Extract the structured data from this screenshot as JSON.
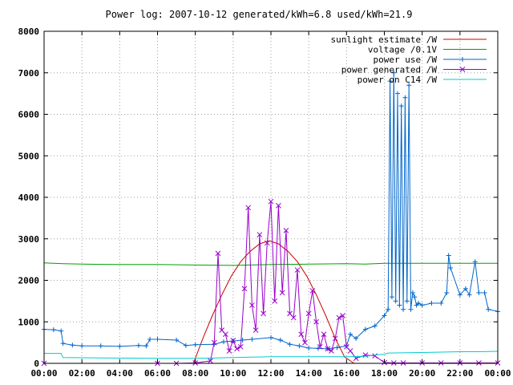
{
  "chart_data": {
    "type": "line",
    "title": "Power log: 2007-10-12 generated/kWh=6.8 used/kWh=21.9",
    "xlabel": "",
    "ylabel": "",
    "xlim": [
      0,
      24
    ],
    "ylim": [
      0,
      8000
    ],
    "grid": true,
    "legend_position": "top-right",
    "x_tick_labels": [
      "00:00",
      "02:00",
      "04:00",
      "06:00",
      "08:00",
      "10:00",
      "12:00",
      "14:00",
      "16:00",
      "18:00",
      "20:00",
      "22:00",
      "00:00"
    ],
    "y_tick_labels": [
      "0",
      "1000",
      "2000",
      "3000",
      "4000",
      "5000",
      "6000",
      "7000",
      "8000"
    ],
    "series": [
      {
        "name": "sunlight estimate /W",
        "color": "#cc0000",
        "marker": "none",
        "x": [
          7.9,
          8.4,
          8.9,
          9.4,
          9.9,
          10.4,
          10.9,
          11.4,
          11.9,
          12.4,
          12.9,
          13.4,
          13.9,
          14.4,
          14.9,
          15.4,
          15.9,
          16.4
        ],
        "y": [
          0,
          600,
          1150,
          1650,
          2100,
          2450,
          2700,
          2880,
          2950,
          2880,
          2700,
          2450,
          2100,
          1650,
          1150,
          600,
          150,
          0
        ]
      },
      {
        "name": "voltage /0.1V",
        "color": "#00a000",
        "marker": "none",
        "x": [
          0,
          1,
          2,
          4,
          6,
          8,
          10,
          12,
          14,
          16,
          17,
          18,
          20,
          22,
          24
        ],
        "y": [
          2420,
          2400,
          2390,
          2380,
          2380,
          2370,
          2360,
          2380,
          2390,
          2400,
          2390,
          2410,
          2410,
          2410,
          2410
        ]
      },
      {
        "name": "power use /W",
        "color": "#0066cc",
        "marker": "plus",
        "x": [
          0,
          0.5,
          0.9,
          1,
          1.5,
          2,
          3,
          4,
          5,
          5.4,
          5.6,
          6,
          7,
          7.5,
          8,
          9,
          9.5,
          10,
          10.5,
          11,
          12,
          12.5,
          13,
          13.5,
          14,
          14.5,
          15,
          15.5,
          16,
          16.2,
          16.5,
          17,
          17.5,
          18,
          18.2,
          18.3,
          18.4,
          18.5,
          18.6,
          18.7,
          18.8,
          18.9,
          19,
          19.1,
          19.2,
          19.3,
          19.4,
          19.5,
          19.6,
          19.7,
          19.8,
          20,
          20.5,
          21,
          21.3,
          21.4,
          21.5,
          22,
          22.3,
          22.5,
          22.8,
          23,
          23.3,
          23.5,
          24
        ],
        "y": [
          820,
          810,
          780,
          480,
          440,
          420,
          420,
          410,
          430,
          420,
          580,
          580,
          560,
          430,
          450,
          460,
          520,
          540,
          560,
          580,
          620,
          560,
          460,
          420,
          370,
          360,
          350,
          380,
          420,
          700,
          600,
          820,
          900,
          1150,
          1300,
          6800,
          1600,
          7000,
          1500,
          6500,
          1400,
          6200,
          1300,
          6400,
          1500,
          6700,
          1300,
          1700,
          1600,
          1400,
          1450,
          1400,
          1450,
          1450,
          1700,
          2600,
          2300,
          1650,
          1800,
          1650,
          2450,
          1700,
          1700,
          1300,
          1250
        ]
      },
      {
        "name": "power generated /W",
        "color": "#9900cc",
        "marker": "cross",
        "x": [
          0,
          6,
          7,
          8,
          8.8,
          9,
          9.2,
          9.4,
          9.6,
          9.8,
          10,
          10.2,
          10.4,
          10.6,
          10.8,
          11,
          11.2,
          11.4,
          11.6,
          11.8,
          12,
          12.2,
          12.4,
          12.6,
          12.8,
          13,
          13.2,
          13.4,
          13.6,
          13.8,
          14,
          14.2,
          14.4,
          14.6,
          14.8,
          15,
          15.2,
          15.4,
          15.6,
          15.8,
          16,
          16.2,
          16.5,
          17,
          17.5,
          18,
          18.5,
          19,
          20,
          21,
          22,
          23,
          24
        ],
        "y": [
          0,
          0,
          0,
          10,
          60,
          500,
          2650,
          800,
          700,
          300,
          550,
          350,
          400,
          1800,
          3750,
          1400,
          800,
          3100,
          1200,
          2900,
          3900,
          1500,
          3800,
          1700,
          3200,
          1200,
          1100,
          2250,
          700,
          500,
          1200,
          1750,
          1000,
          400,
          700,
          350,
          300,
          600,
          1100,
          1150,
          400,
          300,
          120,
          200,
          180,
          20,
          10,
          10,
          10,
          10,
          10,
          10,
          10
        ]
      },
      {
        "name": "power on C14 /W",
        "color": "#00cccc",
        "marker": "none",
        "x": [
          0,
          0.9,
          1,
          3,
          6,
          8,
          10,
          12,
          14,
          16,
          17,
          17.5,
          18,
          18.2,
          20,
          22,
          23,
          24
        ],
        "y": [
          240,
          240,
          140,
          130,
          120,
          120,
          140,
          160,
          160,
          160,
          170,
          200,
          220,
          250,
          260,
          280,
          280,
          290
        ]
      }
    ]
  }
}
